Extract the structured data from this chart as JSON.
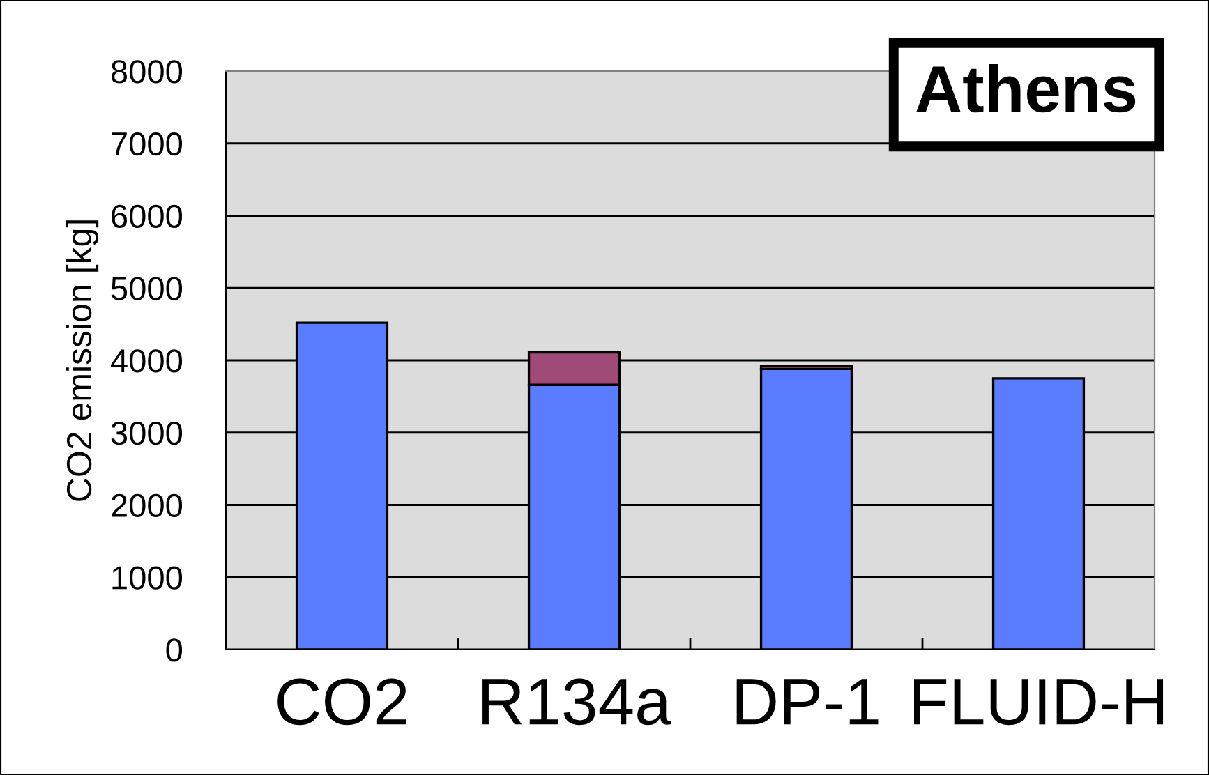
{
  "chart_data": {
    "type": "bar",
    "title": "Athens",
    "ylabel": "CO2 emission [kg]",
    "categories": [
      "CO2",
      "R134a",
      "DP-1",
      "FLUID-H"
    ],
    "stacked": true,
    "series": [
      {
        "color": "#5a7cff",
        "values": [
          4520,
          3660,
          3880,
          3750
        ]
      },
      {
        "color": "#a04a78",
        "values": [
          null,
          450,
          40,
          null
        ]
      }
    ],
    "ylim": [
      0,
      8000
    ],
    "yticks": [
      0,
      1000,
      2000,
      3000,
      4000,
      5000,
      6000,
      7000,
      8000
    ],
    "grid": "y"
  }
}
